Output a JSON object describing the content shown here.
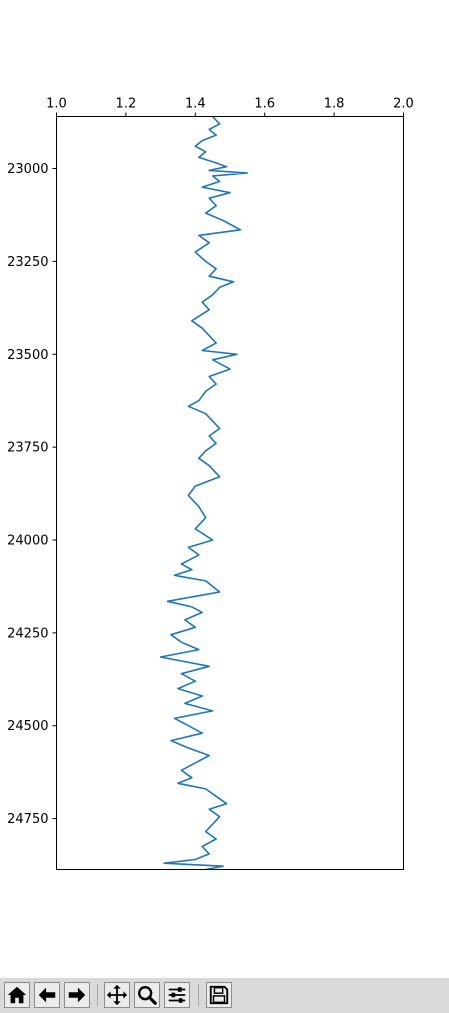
{
  "chart_data": {
    "type": "line",
    "orientation": "vertical-depth",
    "title": "",
    "xlabel": "",
    "ylabel": "",
    "xlim": [
      1.0,
      2.0
    ],
    "ylim": [
      24887,
      22860
    ],
    "y_inverted": true,
    "x_axis_position": "top",
    "grid": false,
    "legend": "none",
    "x_ticks": [
      "1.0",
      "1.2",
      "1.4",
      "1.6",
      "1.8",
      "2.0"
    ],
    "y_ticks": [
      "23000",
      "23250",
      "23500",
      "23750",
      "24000",
      "24250",
      "24500",
      "24750"
    ],
    "series": [
      {
        "color": "#1f77b4",
        "points": [
          [
            1.45,
            22860
          ],
          [
            1.47,
            22880
          ],
          [
            1.44,
            22895
          ],
          [
            1.46,
            22910
          ],
          [
            1.42,
            22925
          ],
          [
            1.4,
            22940
          ],
          [
            1.43,
            22955
          ],
          [
            1.41,
            22970
          ],
          [
            1.46,
            22985
          ],
          [
            1.49,
            22995
          ],
          [
            1.44,
            23005
          ],
          [
            1.55,
            23012
          ],
          [
            1.45,
            23020
          ],
          [
            1.47,
            23035
          ],
          [
            1.42,
            23050
          ],
          [
            1.5,
            23065
          ],
          [
            1.44,
            23080
          ],
          [
            1.46,
            23100
          ],
          [
            1.43,
            23120
          ],
          [
            1.48,
            23140
          ],
          [
            1.53,
            23165
          ],
          [
            1.41,
            23180
          ],
          [
            1.44,
            23200
          ],
          [
            1.4,
            23225
          ],
          [
            1.43,
            23250
          ],
          [
            1.46,
            23270
          ],
          [
            1.44,
            23290
          ],
          [
            1.51,
            23305
          ],
          [
            1.47,
            23320
          ],
          [
            1.45,
            23340
          ],
          [
            1.42,
            23360
          ],
          [
            1.44,
            23380
          ],
          [
            1.39,
            23410
          ],
          [
            1.42,
            23430
          ],
          [
            1.44,
            23450
          ],
          [
            1.46,
            23470
          ],
          [
            1.42,
            23490
          ],
          [
            1.52,
            23500
          ],
          [
            1.45,
            23515
          ],
          [
            1.5,
            23540
          ],
          [
            1.44,
            23560
          ],
          [
            1.46,
            23580
          ],
          [
            1.43,
            23600
          ],
          [
            1.41,
            23625
          ],
          [
            1.38,
            23640
          ],
          [
            1.43,
            23660
          ],
          [
            1.45,
            23680
          ],
          [
            1.47,
            23700
          ],
          [
            1.44,
            23720
          ],
          [
            1.46,
            23740
          ],
          [
            1.43,
            23760
          ],
          [
            1.41,
            23780
          ],
          [
            1.44,
            23800
          ],
          [
            1.47,
            23830
          ],
          [
            1.4,
            23855
          ],
          [
            1.38,
            23880
          ],
          [
            1.41,
            23910
          ],
          [
            1.43,
            23940
          ],
          [
            1.4,
            23970
          ],
          [
            1.45,
            24000
          ],
          [
            1.38,
            24020
          ],
          [
            1.41,
            24040
          ],
          [
            1.36,
            24065
          ],
          [
            1.39,
            24080
          ],
          [
            1.34,
            24095
          ],
          [
            1.43,
            24110
          ],
          [
            1.47,
            24140
          ],
          [
            1.41,
            24150
          ],
          [
            1.32,
            24165
          ],
          [
            1.39,
            24180
          ],
          [
            1.42,
            24195
          ],
          [
            1.37,
            24215
          ],
          [
            1.4,
            24235
          ],
          [
            1.33,
            24255
          ],
          [
            1.36,
            24275
          ],
          [
            1.41,
            24295
          ],
          [
            1.3,
            24315
          ],
          [
            1.44,
            24340
          ],
          [
            1.36,
            24360
          ],
          [
            1.4,
            24380
          ],
          [
            1.35,
            24400
          ],
          [
            1.42,
            24420
          ],
          [
            1.37,
            24440
          ],
          [
            1.45,
            24460
          ],
          [
            1.34,
            24480
          ],
          [
            1.38,
            24500
          ],
          [
            1.42,
            24520
          ],
          [
            1.33,
            24540
          ],
          [
            1.38,
            24560
          ],
          [
            1.44,
            24580
          ],
          [
            1.4,
            24600
          ],
          [
            1.36,
            24620
          ],
          [
            1.39,
            24640
          ],
          [
            1.35,
            24655
          ],
          [
            1.43,
            24670
          ],
          [
            1.46,
            24690
          ],
          [
            1.49,
            24710
          ],
          [
            1.44,
            24725
          ],
          [
            1.47,
            24745
          ],
          [
            1.45,
            24765
          ],
          [
            1.43,
            24785
          ],
          [
            1.46,
            24805
          ],
          [
            1.42,
            24825
          ],
          [
            1.44,
            24845
          ],
          [
            1.4,
            24860
          ],
          [
            1.31,
            24870
          ],
          [
            1.48,
            24878
          ],
          [
            1.43,
            24887
          ]
        ]
      }
    ]
  },
  "toolbar": {
    "buttons": [
      {
        "name": "home-button",
        "icon": "home-icon"
      },
      {
        "name": "back-button",
        "icon": "arrow-left-icon"
      },
      {
        "name": "forward-button",
        "icon": "arrow-right-icon"
      },
      {
        "name": "pan-button",
        "icon": "move-icon"
      },
      {
        "name": "zoom-button",
        "icon": "magnifier-icon"
      },
      {
        "name": "configure-subplots-button",
        "icon": "sliders-icon"
      },
      {
        "name": "save-button",
        "icon": "floppy-disk-icon"
      }
    ]
  }
}
